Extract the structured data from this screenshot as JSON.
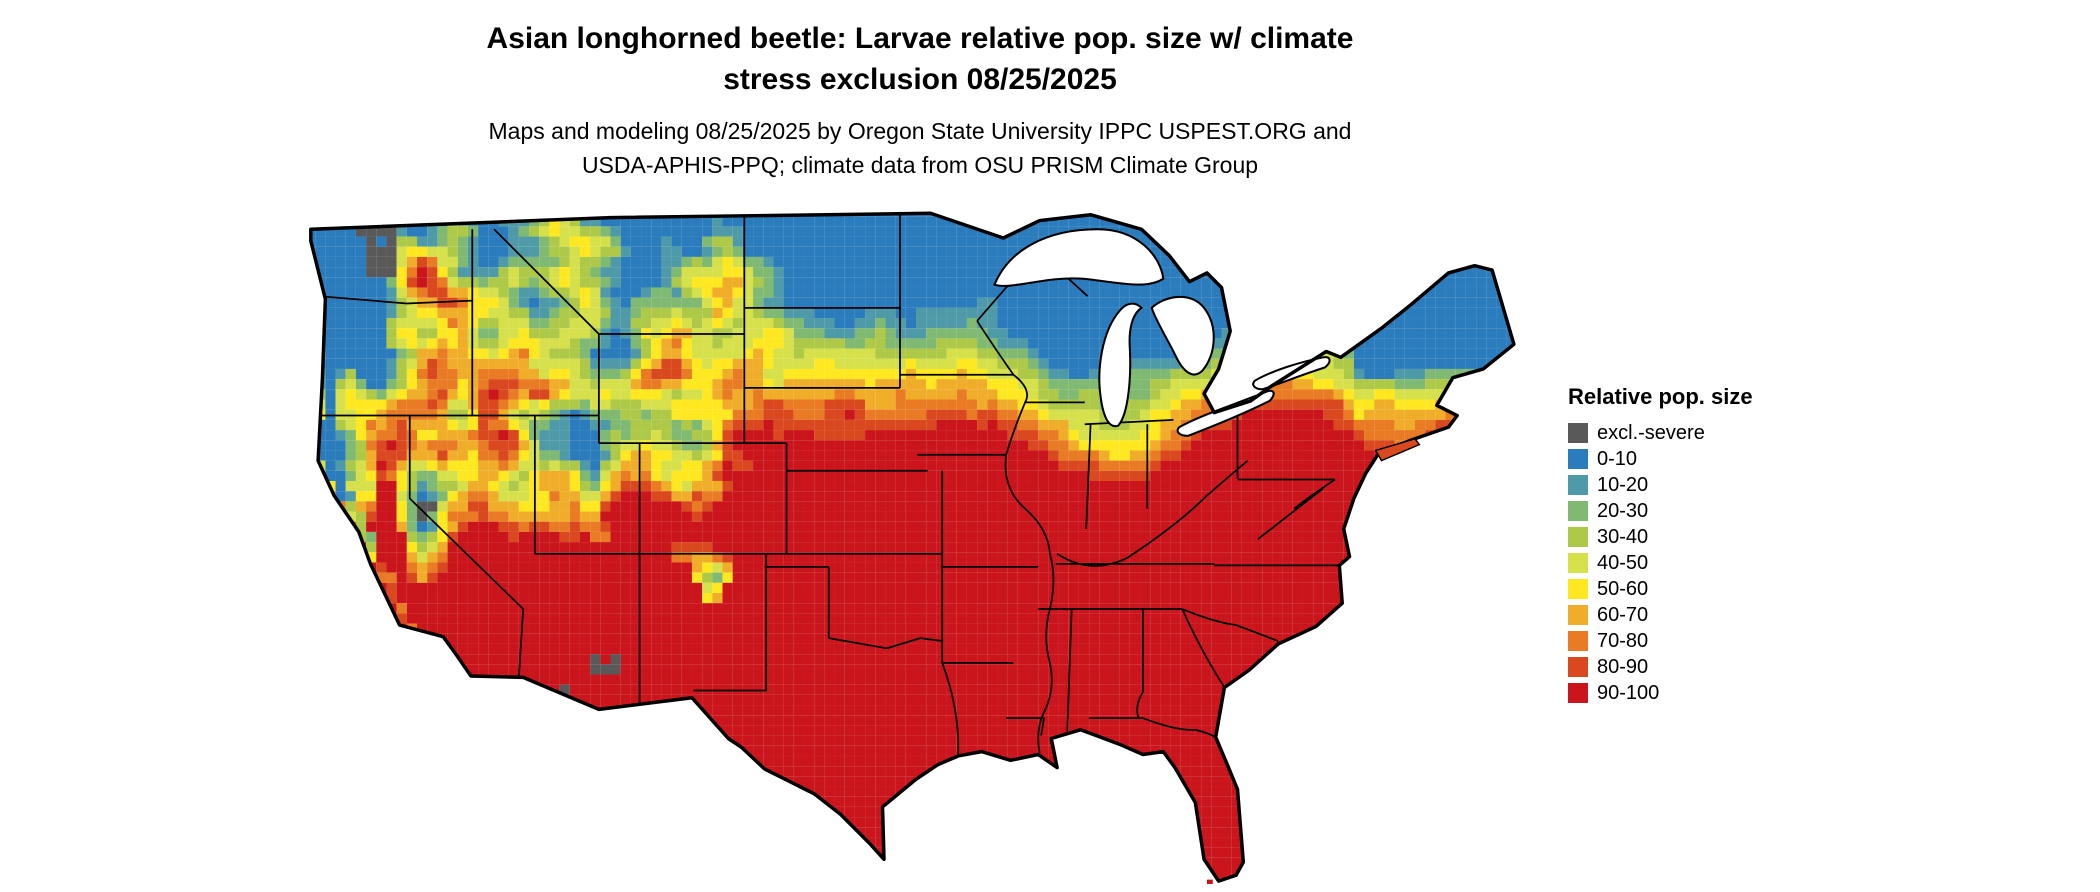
{
  "title": {
    "line1": "Asian longhorned beetle: Larvae relative pop. size w/ climate",
    "line2": "stress exclusion 08/25/2025"
  },
  "subtitle": {
    "line1": "Maps and modeling 08/25/2025 by Oregon State University IPPC USPEST.ORG and",
    "line2": "USDA-APHIS-PPQ; climate data from OSU PRISM Climate Group"
  },
  "legend": {
    "title": "Relative pop. size",
    "entries": [
      {
        "label": "excl.-severe",
        "color": "#595959"
      },
      {
        "label": "0-10",
        "color": "#2b7cbd"
      },
      {
        "label": "10-20",
        "color": "#4f9aa8"
      },
      {
        "label": "20-30",
        "color": "#7fb972"
      },
      {
        "label": "30-40",
        "color": "#aec948"
      },
      {
        "label": "40-50",
        "color": "#d5e04a"
      },
      {
        "label": "50-60",
        "color": "#ffe81f"
      },
      {
        "label": "60-70",
        "color": "#f0ad2a"
      },
      {
        "label": "70-80",
        "color": "#e87b24"
      },
      {
        "label": "80-90",
        "color": "#d9481f"
      },
      {
        "label": "90-100",
        "color": "#c9151b"
      }
    ]
  },
  "map": {
    "region": "Continental United States",
    "outline_color": "#000000",
    "lake_fill": "#ffffff",
    "background": "#ffffff"
  }
}
